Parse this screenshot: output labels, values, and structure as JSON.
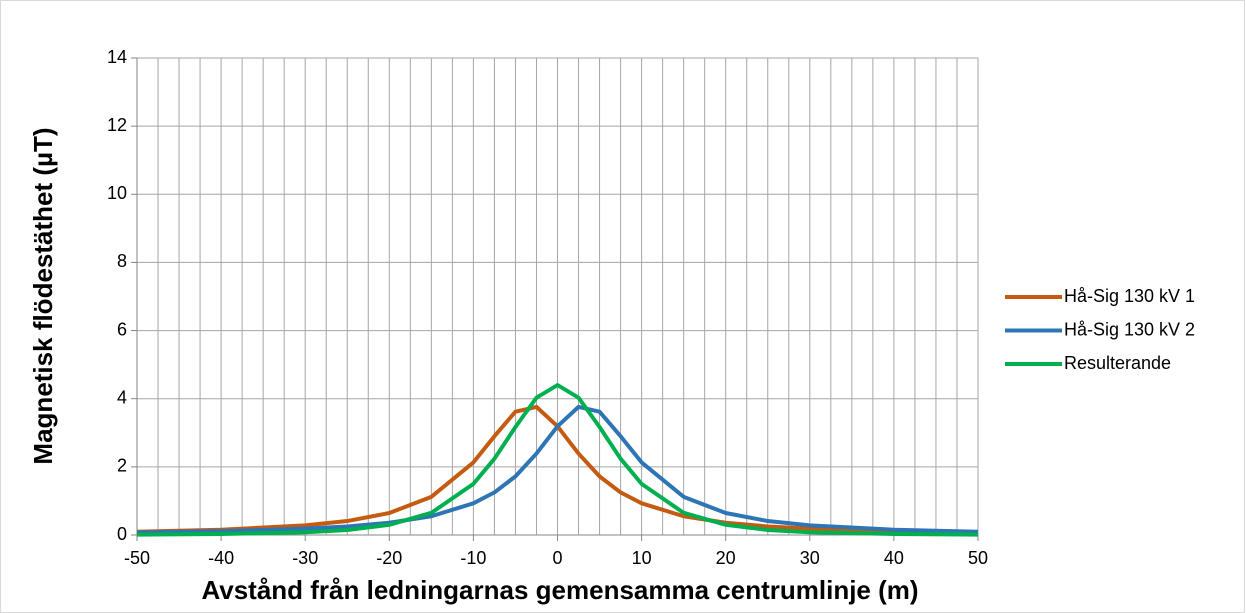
{
  "chart_data": {
    "type": "line",
    "y_label": "Magnetisk flödestäthet (µT)",
    "x_label": "Avstånd från ledningarnas gemensamma centrumlinje (m)",
    "x": [
      -50,
      -40,
      -30,
      -25,
      -20,
      -15,
      -10,
      -7.5,
      -5,
      -2.5,
      0,
      2.5,
      5,
      7.5,
      10,
      15,
      20,
      25,
      30,
      40,
      50
    ],
    "series": [
      {
        "name": "Hå-Sig 130 kV 1",
        "color": "#c55a11",
        "values": [
          0.097,
          0.154,
          0.281,
          0.41,
          0.645,
          1.12,
          2.13,
          2.9,
          3.62,
          3.76,
          3.19,
          2.39,
          1.72,
          1.25,
          0.93,
          0.55,
          0.36,
          0.25,
          0.186,
          0.112,
          0.075
        ]
      },
      {
        "name": "Hå-Sig 130 kV 2",
        "color": "#2e75b6",
        "values": [
          0.075,
          0.112,
          0.186,
          0.25,
          0.36,
          0.55,
          0.93,
          1.25,
          1.72,
          2.39,
          3.19,
          3.76,
          3.62,
          2.9,
          2.13,
          1.12,
          0.645,
          0.41,
          0.281,
          0.154,
          0.097
        ]
      },
      {
        "name": "Resulterande",
        "color": "#00b050",
        "values": [
          0.012,
          0.029,
          0.08,
          0.147,
          0.3,
          0.65,
          1.5,
          2.24,
          3.17,
          4.03,
          4.4,
          4.03,
          3.17,
          2.24,
          1.5,
          0.65,
          0.3,
          0.147,
          0.08,
          0.029,
          0.012
        ]
      }
    ],
    "xlim": [
      -50,
      50
    ],
    "xticks": [
      -50,
      -40,
      -30,
      -20,
      -10,
      0,
      10,
      20,
      30,
      40,
      50
    ],
    "x_grid_step": 2.5,
    "ylim": [
      0,
      14
    ],
    "yticks": [
      0,
      2,
      4,
      6,
      8,
      10,
      12,
      14
    ],
    "grid": true,
    "legend": "right"
  }
}
